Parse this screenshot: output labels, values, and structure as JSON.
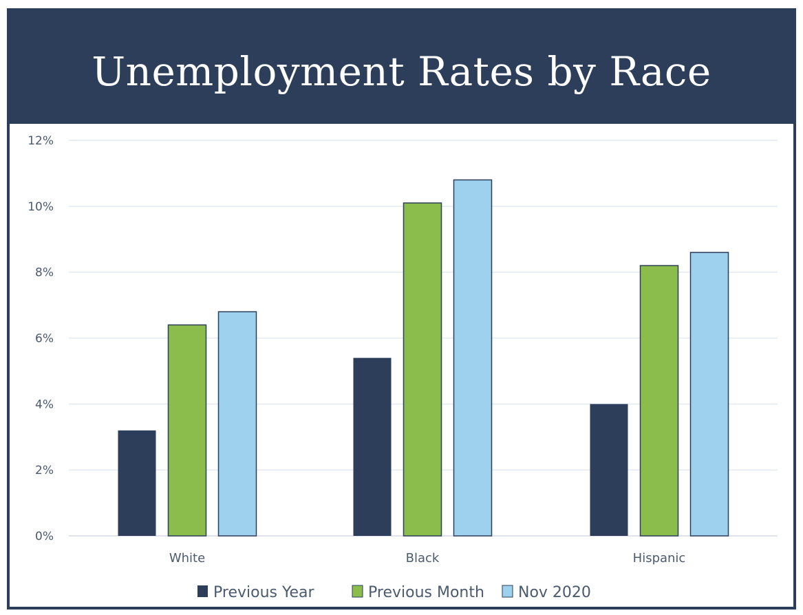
{
  "chart_data": {
    "type": "bar",
    "title": "Unemployment Rates by Race",
    "xlabel": "",
    "ylabel": "",
    "categories": [
      "White",
      "Black",
      "Hispanic"
    ],
    "series": [
      {
        "name": "Previous Year",
        "color": "#2c3e5a",
        "values": [
          3.2,
          5.4,
          4.0
        ]
      },
      {
        "name": "Previous Month",
        "color": "#8bbd4c",
        "values": [
          6.4,
          10.1,
          8.2
        ]
      },
      {
        "name": "Nov 2020",
        "color": "#9dd1ee",
        "values": [
          6.8,
          10.8,
          8.6
        ]
      }
    ],
    "yticks": [
      "0%",
      "2%",
      "4%",
      "6%",
      "8%",
      "10%",
      "12%"
    ],
    "ylim": [
      0,
      12
    ],
    "grid": true,
    "legend": "bottom"
  }
}
